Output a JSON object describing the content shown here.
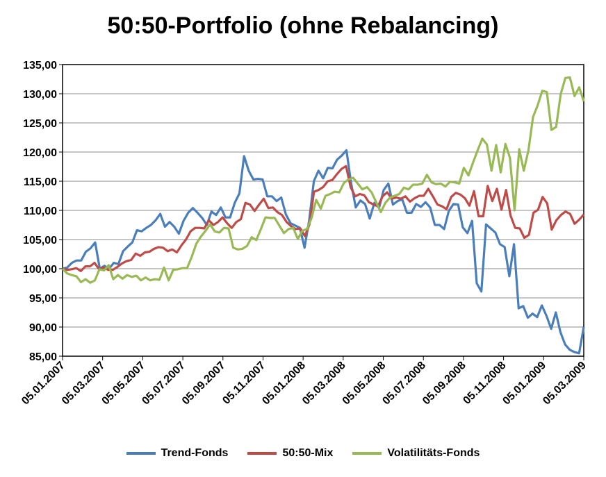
{
  "chart_data": {
    "type": "line",
    "title": "50:50-Portfolio (ohne Rebalancing)",
    "xlabel": "",
    "ylabel": "",
    "ylim": [
      85,
      135
    ],
    "yticks": [
      "85,00",
      "90,00",
      "95,00",
      "100,00",
      "105,00",
      "110,00",
      "115,00",
      "120,00",
      "125,00",
      "130,00",
      "135,00"
    ],
    "xticks": [
      "05.01.2007",
      "05.03.2007",
      "05.05.2007",
      "05.07.2007",
      "05.09.2007",
      "05.11.2007",
      "05.01.2008",
      "05.03.2008",
      "05.05.2008",
      "05.07.2008",
      "05.09.2008",
      "05.11.2008",
      "05.01.2009",
      "05.03.2009"
    ],
    "grid": true,
    "legend_position": "bottom",
    "series": [
      {
        "name": "Trend-Fonds",
        "color": "#4a7ebb",
        "values": [
          100,
          100.2,
          101,
          101.4,
          101.4,
          102.9,
          103.5,
          104.5,
          100,
          100.5,
          100,
          101,
          100.8,
          103,
          103.8,
          104.5,
          106.6,
          106.4,
          107,
          107.5,
          108.3,
          109.4,
          107.2,
          108,
          107.2,
          106,
          108.2,
          109.6,
          110.4,
          109.6,
          108.7,
          107.5,
          109.8,
          109.2,
          110.5,
          108.8,
          108.8,
          111.3,
          112.9,
          119.3,
          116.8,
          115.3,
          115.4,
          115.3,
          112.4,
          112.4,
          111.6,
          112.2,
          109.3,
          107.8,
          107.4,
          107,
          103.6,
          108.3,
          115,
          116.8,
          115.5,
          117.3,
          117.2,
          118.7,
          119.4,
          120.3,
          114.7,
          110.5,
          111.7,
          111.1,
          108.6,
          111.3,
          110.4,
          113.5,
          114.6,
          111,
          111.6,
          111.9,
          109.6,
          109.6,
          111.1,
          110.6,
          111.4,
          110.5,
          107.5,
          107.5,
          106.8,
          109.9,
          111.1,
          111,
          107.1,
          106.1,
          108.2,
          97.5,
          96.1,
          107.6,
          106.9,
          106.2,
          104.2,
          103.7,
          98.7,
          104.2,
          93.2,
          93.6,
          91.6,
          92.3,
          91.7,
          93.7,
          91.9,
          89.7,
          92.5,
          89.1,
          87,
          86.1,
          85.7,
          85.5,
          90
        ]
      },
      {
        "name": "50:50-Mix",
        "color": "#be4b48",
        "values": [
          100,
          99.8,
          99.9,
          100.1,
          99.6,
          100.4,
          100.4,
          101,
          99.9,
          100.2,
          99.8,
          99.8,
          100.3,
          100.9,
          101.3,
          101.5,
          102.6,
          102.2,
          102.8,
          102.9,
          103.4,
          103.7,
          103.6,
          103,
          103.3,
          102.8,
          104,
          105,
          106.4,
          107,
          107,
          106.9,
          108.3,
          107.5,
          108,
          108.8,
          107.8,
          107,
          108,
          108.5,
          111.3,
          111,
          109.9,
          111,
          112,
          110.4,
          110.5,
          109.7,
          109.2,
          108,
          107.3,
          106.8,
          106.9,
          105.6,
          107.6,
          113.2,
          113.5,
          114,
          115,
          115.2,
          116.2,
          117.1,
          117.6,
          114,
          112.4,
          112.8,
          112.6,
          111.4,
          111,
          110.7,
          112.4,
          113.1,
          112,
          112.2,
          112,
          112.4,
          111.5,
          112.1,
          112.5,
          112.5,
          113.7,
          112.4,
          111,
          110.7,
          110.2,
          112.3,
          113,
          112.7,
          112.1,
          110.8,
          113.3,
          109,
          109,
          114.2,
          111.6,
          113.7,
          110.1,
          113.5,
          109.1,
          107,
          106.9,
          105.3,
          105.8,
          109.6,
          110.1,
          112.3,
          111.2,
          106.7,
          108.3,
          109.2,
          109.8,
          109.4,
          107.7,
          108.4,
          109.3
        ]
      },
      {
        "name": "Volatilitäts-Fonds",
        "color": "#98b954",
        "values": [
          100,
          99.2,
          98.9,
          98.7,
          97.7,
          98.2,
          97.6,
          98,
          99.9,
          99.7,
          100.6,
          98.2,
          98.9,
          98.3,
          98.9,
          98.6,
          98.8,
          98,
          98.5,
          98,
          98.2,
          98.1,
          100.2,
          98,
          99.8,
          99.9,
          100.1,
          100.1,
          102,
          104.3,
          105.5,
          106.5,
          107.6,
          106.4,
          106.2,
          107,
          106.9,
          103.6,
          103.3,
          103.4,
          103.9,
          105.4,
          104.9,
          106.8,
          108.8,
          108.7,
          108.7,
          107.4,
          106.1,
          106.8,
          107,
          105.1,
          106.5,
          106.8,
          108.7,
          111.8,
          110.3,
          112.5,
          112.8,
          113.2,
          113.1,
          114.7,
          115.3,
          115.6,
          114.6,
          113.6,
          114,
          113.1,
          111.4,
          109.7,
          111.3,
          112.2,
          112.5,
          112.8,
          113.9,
          113.6,
          114.4,
          114.4,
          114.6,
          116.1,
          114.8,
          114.5,
          114.6,
          114.1,
          114.9,
          114.8,
          114.6,
          117.3,
          116,
          118.2,
          120.3,
          122.3,
          121.3,
          116.8,
          121.2,
          116.5,
          121.4,
          119,
          110,
          120.5,
          116.8,
          120.3,
          126,
          128,
          130.5,
          130.3,
          123.8,
          124.3,
          129.9,
          132.7,
          132.8,
          129.6,
          131.1,
          128.7
        ]
      }
    ]
  }
}
